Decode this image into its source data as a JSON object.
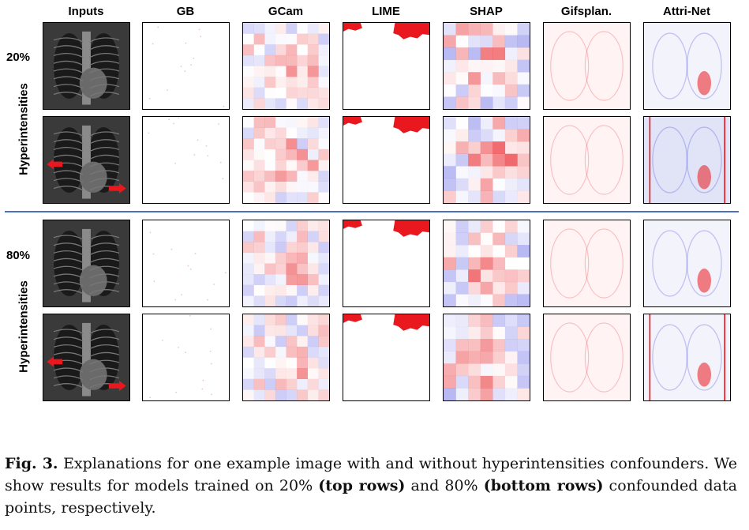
{
  "columns": [
    "Inputs",
    "GB",
    "GCam",
    "LIME",
    "SHAP",
    "Gifsplan.",
    "Attri-Net"
  ],
  "groups": [
    {
      "percent": "20%",
      "label": "Hyperintensities"
    },
    {
      "percent": "80%",
      "label": "Hyperintensities"
    }
  ],
  "caption": {
    "fig_label": "Fig. 3.",
    "text_a": " Explanations for one example image with and without hyperintensities confounders. We show results for models trained on 20% ",
    "bold_a": "(top rows)",
    "text_b": " and 80% ",
    "bold_b": "(bottom rows)",
    "text_c": " confounded data points, respectively."
  },
  "colors": {
    "positive": "#e8181e",
    "negative": "#2d2ddc",
    "divider": "#4a6fc4"
  }
}
